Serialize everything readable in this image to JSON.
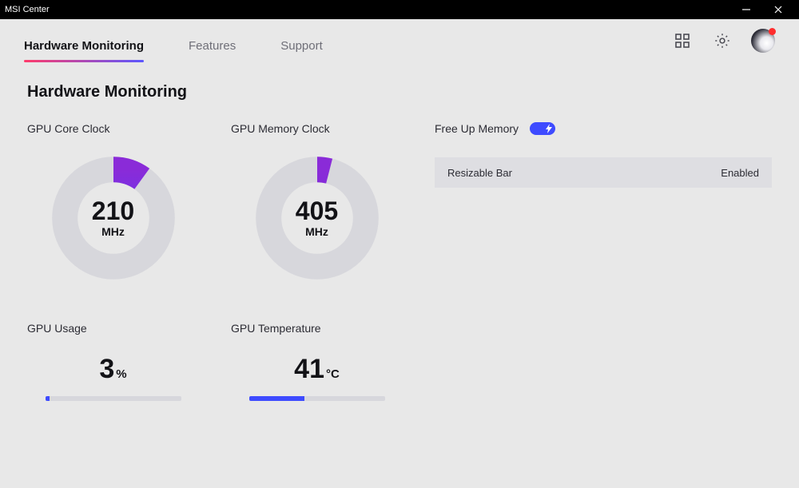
{
  "app": {
    "title": "MSI Center"
  },
  "tabs": {
    "hardware": "Hardware Monitoring",
    "features": "Features",
    "support": "Support",
    "activeIndex": 0
  },
  "page": {
    "title": "Hardware Monitoring"
  },
  "gauges": {
    "gpu_core": {
      "label": "GPU Core Clock",
      "value": "210",
      "unit": "MHz",
      "fraction": 0.1,
      "stroke_width": 20,
      "track_color": "#d7d7dc",
      "grad_from": "#4a3eff",
      "grad_to": "#8a2bd8"
    },
    "gpu_mem": {
      "label": "GPU Memory Clock",
      "value": "405",
      "unit": "MHz",
      "fraction": 0.04,
      "stroke_width": 20,
      "track_color": "#d7d7dc",
      "grad_from": "#6a2bd8",
      "grad_to": "#8a2bd8"
    }
  },
  "bars": {
    "gpu_usage": {
      "label": "GPU Usage",
      "value": "3",
      "unit": "%",
      "fraction": 0.03,
      "fill_color": "#3e4bff",
      "track_color": "#d7d7dc"
    },
    "gpu_temp": {
      "label": "GPU Temperature",
      "value": "41",
      "unit": "°C",
      "fraction": 0.41,
      "fill_color": "#3e4bff",
      "track_color": "#d7d7dc"
    }
  },
  "right": {
    "freeup_label": "Free Up Memory",
    "toggle_on": true,
    "setting_label": "Resizable Bar",
    "setting_value": "Enabled"
  },
  "colors": {
    "page_bg": "#e8e8e8",
    "tab_active_underline_from": "#ff3b6b",
    "tab_active_underline_to": "#5b57ff"
  }
}
